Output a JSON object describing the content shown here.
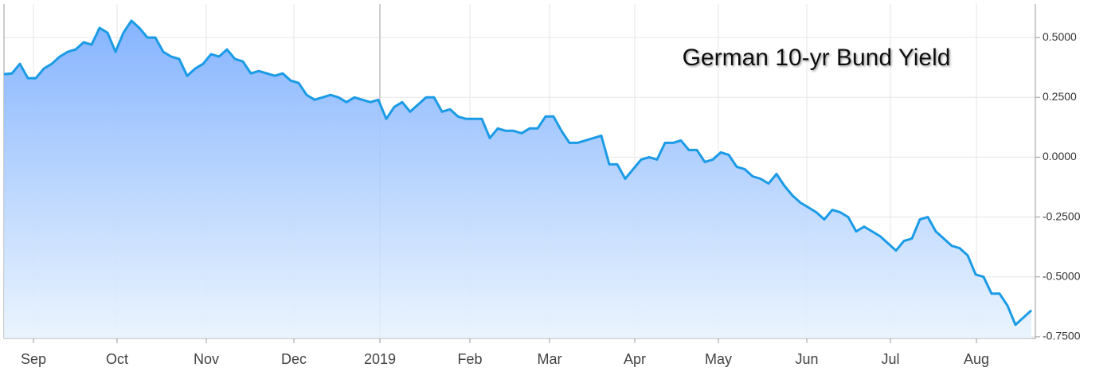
{
  "chart_data": {
    "type": "area",
    "title": "German 10-yr Bund Yield",
    "series": [
      {
        "name": "German 10-yr Bund Yield",
        "color": "#1a9be6",
        "values": [
          0.347,
          0.35,
          0.39,
          0.33,
          0.33,
          0.37,
          0.39,
          0.42,
          0.44,
          0.45,
          0.48,
          0.47,
          0.54,
          0.52,
          0.44,
          0.52,
          0.57,
          0.54,
          0.5,
          0.5,
          0.44,
          0.42,
          0.41,
          0.34,
          0.37,
          0.39,
          0.43,
          0.42,
          0.45,
          0.41,
          0.4,
          0.35,
          0.36,
          0.35,
          0.34,
          0.35,
          0.32,
          0.31,
          0.26,
          0.24,
          0.25,
          0.26,
          0.25,
          0.23,
          0.25,
          0.24,
          0.23,
          0.24,
          0.16,
          0.21,
          0.23,
          0.19,
          0.22,
          0.25,
          0.25,
          0.19,
          0.2,
          0.17,
          0.16,
          0.16,
          0.16,
          0.08,
          0.12,
          0.11,
          0.11,
          0.1,
          0.12,
          0.12,
          0.17,
          0.17,
          0.11,
          0.06,
          0.06,
          0.07,
          0.08,
          0.09,
          -0.03,
          -0.03,
          -0.09,
          -0.05,
          -0.01,
          0.0,
          -0.01,
          0.06,
          0.06,
          0.07,
          0.03,
          0.03,
          -0.02,
          -0.01,
          0.02,
          0.01,
          -0.04,
          -0.05,
          -0.08,
          -0.09,
          -0.11,
          -0.07,
          -0.12,
          -0.16,
          -0.19,
          -0.21,
          -0.23,
          -0.26,
          -0.22,
          -0.23,
          -0.25,
          -0.31,
          -0.29,
          -0.31,
          -0.33,
          -0.36,
          -0.39,
          -0.35,
          -0.34,
          -0.26,
          -0.25,
          -0.31,
          -0.34,
          -0.37,
          -0.38,
          -0.41,
          -0.49,
          -0.5,
          -0.57,
          -0.57,
          -0.62,
          -0.7,
          -0.67,
          -0.64
        ]
      }
    ],
    "xlim": [
      0,
      129.5
    ],
    "xticks": [
      {
        "value": 3.7,
        "label": "Sep"
      },
      {
        "value": 14.2,
        "label": "Oct"
      },
      {
        "value": 25.4,
        "label": "Nov"
      },
      {
        "value": 36.4,
        "label": "Dec"
      },
      {
        "value": 47.2,
        "label": "2019"
      },
      {
        "value": 58.5,
        "label": "Feb"
      },
      {
        "value": 68.5,
        "label": "Mar"
      },
      {
        "value": 79.2,
        "label": "Apr"
      },
      {
        "value": 89.7,
        "label": "May"
      },
      {
        "value": 100.8,
        "label": "Jun"
      },
      {
        "value": 111.3,
        "label": "Jul"
      },
      {
        "value": 122.1,
        "label": "Aug"
      }
    ],
    "ylim": [
      -0.757,
      0.64
    ],
    "yticks": [
      {
        "value": -0.75,
        "label": "-0.7500"
      },
      {
        "value": -0.5,
        "label": "-0.5000"
      },
      {
        "value": -0.25,
        "label": "-0.2500"
      },
      {
        "value": 0,
        "label": "0.0000"
      },
      {
        "value": 0.25,
        "label": "0.2500"
      },
      {
        "value": 0.5,
        "label": "0.5000"
      }
    ],
    "grid": true
  }
}
